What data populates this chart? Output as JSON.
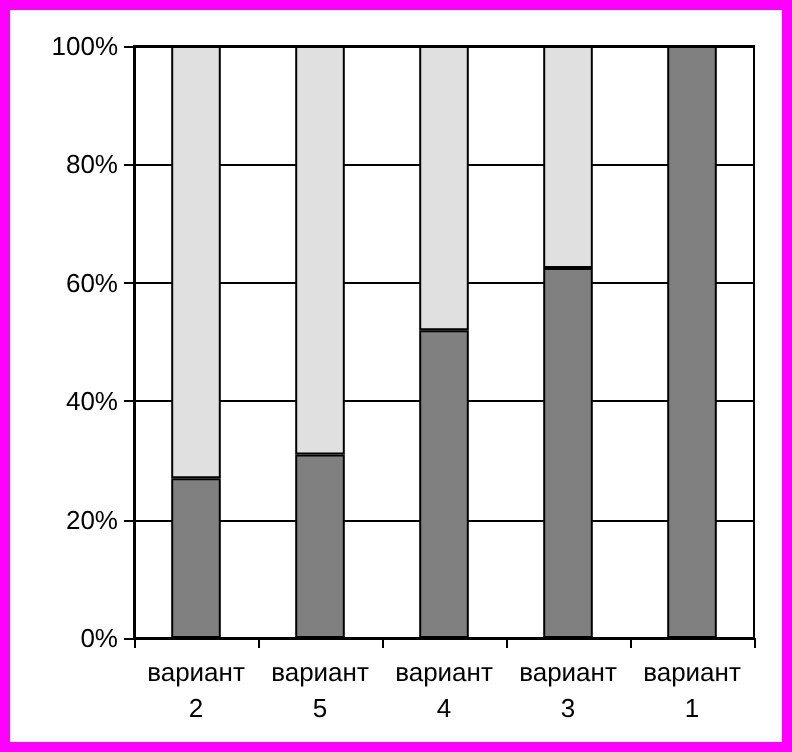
{
  "chart_data": {
    "type": "bar",
    "stacked": true,
    "categories": [
      "вариант 2",
      "вариант 5",
      "вариант 4",
      "вариант 3",
      "вариант 1"
    ],
    "series": [
      {
        "color": "#808080",
        "values": [
          27,
          31,
          52,
          62.5,
          100
        ]
      },
      {
        "color": "#e0e0e0",
        "values": [
          73,
          69,
          48,
          37.5,
          0
        ]
      }
    ],
    "ylim": [
      0,
      100
    ],
    "yticks": [
      {
        "value": 0,
        "label": "0%"
      },
      {
        "value": 20,
        "label": "20%"
      },
      {
        "value": 40,
        "label": "40%"
      },
      {
        "value": 60,
        "label": "60%"
      },
      {
        "value": 80,
        "label": "80%"
      },
      {
        "value": 100,
        "label": "100%"
      }
    ],
    "grid": "y"
  }
}
